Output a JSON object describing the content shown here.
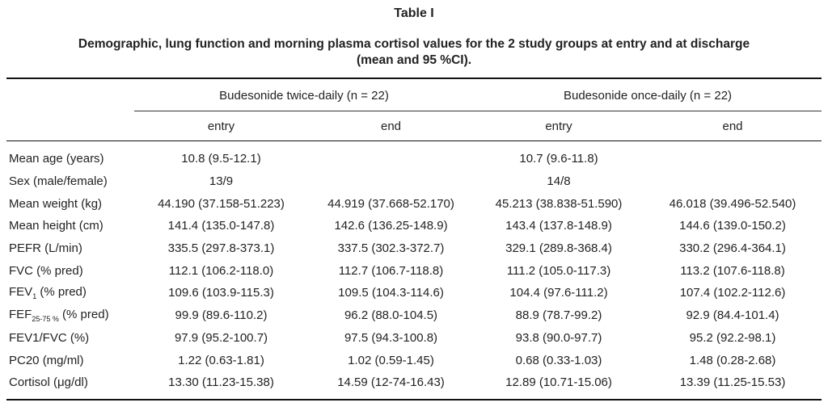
{
  "header": {
    "title": "Table I",
    "caption": [
      "Demographic, lung function and morning plasma cortisol values for the 2 study groups at entry and at discharge",
      "(mean and 95 %CI)."
    ]
  },
  "table": {
    "groups": [
      "Budesonide twice-daily (n = 22)",
      "Budesonide once-daily (n = 22)"
    ],
    "columns": [
      "entry",
      "end",
      "entry",
      "end"
    ],
    "rows": [
      {
        "label": {
          "main": "Mean age (years)"
        },
        "cells": [
          "10.8 (9.5-12.1)",
          null,
          "10.7 (9.6-11.8)",
          null
        ]
      },
      {
        "label": {
          "main": "Sex (male/female)"
        },
        "cells": [
          "13/9",
          null,
          "14/8",
          null
        ]
      },
      {
        "label": {
          "main": "Mean weight (kg)"
        },
        "cells": [
          "44.190 (37.158-51.223)",
          "44.919 (37.668-52.170)",
          "45.213 (38.838-51.590)",
          "46.018 (39.496-52.540)"
        ]
      },
      {
        "label": {
          "main": "Mean height (cm)"
        },
        "cells": [
          "141.4 (135.0-147.8)",
          "142.6 (136.25-148.9)",
          "143.4 (137.8-148.9)",
          "144.6 (139.0-150.2)"
        ]
      },
      {
        "label": {
          "main": "PEFR (L/min)"
        },
        "cells": [
          "335.5 (297.8-373.1)",
          "337.5 (302.3-372.7)",
          "329.1 (289.8-368.4)",
          "330.2 (296.4-364.1)"
        ]
      },
      {
        "label": {
          "main": "FVC (% pred)"
        },
        "cells": [
          "112.1 (106.2-118.0)",
          "112.7 (106.7-118.8)",
          "111.2 (105.0-117.3)",
          "113.2 (107.6-118.8)"
        ]
      },
      {
        "label": {
          "main": "FEV",
          "sub": "1",
          "after": "(% pred)"
        },
        "cells": [
          "109.6 (103.9-115.3)",
          "109.5 (104.3-114.6)",
          "104.4 (97.6-111.2)",
          "107.4 (102.2-112.6)"
        ]
      },
      {
        "label": {
          "main": "FEF",
          "sub": "25-75 %",
          "after": "(% pred)"
        },
        "cells": [
          "99.9 (89.6-110.2)",
          "96.2 (88.0-104.5)",
          "88.9 (78.7-99.2)",
          "92.9 (84.4-101.4)"
        ]
      },
      {
        "label": {
          "main": "FEV1/FVC (%)"
        },
        "cells": [
          "97.9 (95.2-100.7)",
          "97.5 (94.3-100.8)",
          "93.8 (90.0-97.7)",
          "95.2 (92.2-98.1)"
        ]
      },
      {
        "label": {
          "main": "PC20 (mg/ml)"
        },
        "cells": [
          "1.22 (0.63-1.81)",
          "1.02 (0.59-1.45)",
          "0.68 (0.33-1.03)",
          "1.48 (0.28-2.68)"
        ]
      },
      {
        "label": {
          "main": "Cortisol (μg/dl)"
        },
        "cells": [
          "13.30 (11.23-15.38)",
          "14.59 (12-74-16.43)",
          "12.89 (10.71-15.06)",
          "13.39 (11.25-15.53)"
        ]
      }
    ]
  }
}
